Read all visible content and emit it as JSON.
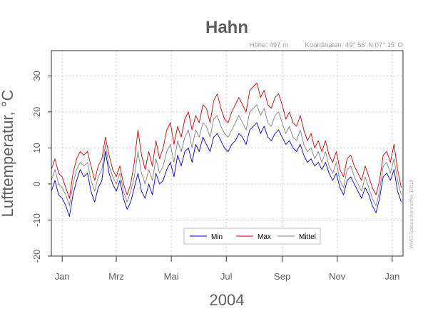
{
  "chart_data": {
    "type": "line",
    "title": "Hahn",
    "subtitle_elevation": "Höhe: 497 m",
    "subtitle_coordinates": "Koordinaten: 49° 56' N  07° 15' O",
    "xlabel": "2004",
    "ylabel": "Lufttemperatur, °C",
    "station_note": "WMO-Stationskennziffer 10616",
    "ylim": [
      -20,
      37
    ],
    "yticks": [
      -20,
      -10,
      0,
      10,
      20,
      30
    ],
    "x_range_days": [
      -12,
      378
    ],
    "months": [
      {
        "label": "Jan",
        "day": 0
      },
      {
        "label": "Mrz",
        "day": 60
      },
      {
        "label": "Mai",
        "day": 121
      },
      {
        "label": "Jul",
        "day": 182
      },
      {
        "label": "Sep",
        "day": 244
      },
      {
        "label": "Nov",
        "day": 305
      },
      {
        "label": "Jan",
        "day": 366
      }
    ],
    "legend_placement": "bottom-center",
    "grid": true,
    "colors": {
      "min": "#0000cc",
      "max": "#cc0000",
      "mean": "#808080"
    },
    "series": [
      {
        "name": "Min",
        "key": "min",
        "color": "#0000cc",
        "points": [
          [
            -12,
            -2
          ],
          [
            -8,
            1
          ],
          [
            -4,
            -3
          ],
          [
            0,
            -4
          ],
          [
            4,
            -6
          ],
          [
            8,
            -9
          ],
          [
            12,
            -3
          ],
          [
            16,
            1
          ],
          [
            20,
            4
          ],
          [
            24,
            2
          ],
          [
            28,
            3
          ],
          [
            32,
            -2
          ],
          [
            36,
            -5
          ],
          [
            40,
            -1
          ],
          [
            44,
            1
          ],
          [
            48,
            9
          ],
          [
            52,
            3
          ],
          [
            56,
            0
          ],
          [
            60,
            -2
          ],
          [
            64,
            1
          ],
          [
            68,
            -4
          ],
          [
            72,
            -7
          ],
          [
            76,
            -5
          ],
          [
            80,
            -1
          ],
          [
            84,
            3
          ],
          [
            88,
            -2
          ],
          [
            92,
            -4
          ],
          [
            96,
            0
          ],
          [
            100,
            -3
          ],
          [
            104,
            3
          ],
          [
            108,
            0
          ],
          [
            112,
            1
          ],
          [
            116,
            4
          ],
          [
            120,
            6
          ],
          [
            124,
            2
          ],
          [
            128,
            8
          ],
          [
            132,
            5
          ],
          [
            136,
            9
          ],
          [
            140,
            10
          ],
          [
            144,
            6
          ],
          [
            148,
            11
          ],
          [
            152,
            9
          ],
          [
            156,
            13
          ],
          [
            160,
            11
          ],
          [
            164,
            9
          ],
          [
            168,
            13
          ],
          [
            172,
            14
          ],
          [
            176,
            12
          ],
          [
            180,
            10
          ],
          [
            184,
            9
          ],
          [
            188,
            11
          ],
          [
            192,
            12
          ],
          [
            196,
            14
          ],
          [
            200,
            13
          ],
          [
            204,
            11
          ],
          [
            208,
            15
          ],
          [
            212,
            16
          ],
          [
            216,
            17
          ],
          [
            220,
            14
          ],
          [
            224,
            16
          ],
          [
            228,
            13
          ],
          [
            232,
            12
          ],
          [
            236,
            14
          ],
          [
            240,
            15
          ],
          [
            244,
            13
          ],
          [
            248,
            11
          ],
          [
            252,
            12
          ],
          [
            256,
            10
          ],
          [
            260,
            9
          ],
          [
            264,
            11
          ],
          [
            268,
            8
          ],
          [
            272,
            6
          ],
          [
            276,
            7
          ],
          [
            280,
            5
          ],
          [
            284,
            6
          ],
          [
            288,
            4
          ],
          [
            292,
            6
          ],
          [
            296,
            3
          ],
          [
            300,
            1
          ],
          [
            304,
            3
          ],
          [
            308,
            -1
          ],
          [
            312,
            -3
          ],
          [
            316,
            1
          ],
          [
            320,
            2
          ],
          [
            324,
            0
          ],
          [
            328,
            -2
          ],
          [
            332,
            -4
          ],
          [
            336,
            -1
          ],
          [
            340,
            -3
          ],
          [
            344,
            -6
          ],
          [
            348,
            -8
          ],
          [
            352,
            -4
          ],
          [
            356,
            2
          ],
          [
            360,
            3
          ],
          [
            364,
            1
          ],
          [
            368,
            4
          ],
          [
            372,
            -2
          ],
          [
            376,
            -5
          ]
        ]
      },
      {
        "name": "Max",
        "key": "max",
        "color": "#cc0000",
        "points": [
          [
            -12,
            4
          ],
          [
            -8,
            7
          ],
          [
            -4,
            3
          ],
          [
            0,
            2
          ],
          [
            4,
            -1
          ],
          [
            8,
            -4
          ],
          [
            12,
            3
          ],
          [
            16,
            7
          ],
          [
            20,
            9
          ],
          [
            24,
            8
          ],
          [
            28,
            9
          ],
          [
            32,
            5
          ],
          [
            36,
            1
          ],
          [
            40,
            5
          ],
          [
            44,
            7
          ],
          [
            48,
            13
          ],
          [
            52,
            8
          ],
          [
            56,
            4
          ],
          [
            60,
            2
          ],
          [
            64,
            5
          ],
          [
            68,
            0
          ],
          [
            72,
            -3
          ],
          [
            76,
            0
          ],
          [
            80,
            6
          ],
          [
            84,
            15
          ],
          [
            88,
            8
          ],
          [
            92,
            4
          ],
          [
            96,
            9
          ],
          [
            100,
            5
          ],
          [
            104,
            12
          ],
          [
            108,
            7
          ],
          [
            112,
            10
          ],
          [
            116,
            15
          ],
          [
            120,
            17
          ],
          [
            124,
            11
          ],
          [
            128,
            16
          ],
          [
            132,
            13
          ],
          [
            136,
            18
          ],
          [
            140,
            20
          ],
          [
            144,
            15
          ],
          [
            148,
            19
          ],
          [
            152,
            17
          ],
          [
            156,
            22
          ],
          [
            160,
            21
          ],
          [
            164,
            17
          ],
          [
            168,
            23
          ],
          [
            172,
            25
          ],
          [
            176,
            21
          ],
          [
            180,
            18
          ],
          [
            184,
            17
          ],
          [
            188,
            20
          ],
          [
            192,
            22
          ],
          [
            196,
            24
          ],
          [
            200,
            22
          ],
          [
            204,
            20
          ],
          [
            208,
            26
          ],
          [
            212,
            27
          ],
          [
            216,
            28
          ],
          [
            220,
            24
          ],
          [
            224,
            26
          ],
          [
            228,
            22
          ],
          [
            232,
            21
          ],
          [
            236,
            24
          ],
          [
            240,
            25
          ],
          [
            244,
            22
          ],
          [
            248,
            18
          ],
          [
            252,
            20
          ],
          [
            256,
            17
          ],
          [
            260,
            16
          ],
          [
            264,
            19
          ],
          [
            268,
            15
          ],
          [
            272,
            12
          ],
          [
            276,
            14
          ],
          [
            280,
            10
          ],
          [
            284,
            12
          ],
          [
            288,
            9
          ],
          [
            292,
            12
          ],
          [
            296,
            8
          ],
          [
            300,
            6
          ],
          [
            304,
            9
          ],
          [
            308,
            4
          ],
          [
            312,
            2
          ],
          [
            316,
            7
          ],
          [
            320,
            8
          ],
          [
            324,
            5
          ],
          [
            328,
            3
          ],
          [
            332,
            1
          ],
          [
            336,
            5
          ],
          [
            340,
            2
          ],
          [
            344,
            -1
          ],
          [
            348,
            -3
          ],
          [
            352,
            1
          ],
          [
            356,
            8
          ],
          [
            360,
            9
          ],
          [
            364,
            6
          ],
          [
            368,
            11
          ],
          [
            372,
            4
          ],
          [
            376,
            -1
          ]
        ]
      },
      {
        "name": "Mittel",
        "key": "mean",
        "color": "#808080",
        "points": [
          [
            -12,
            1
          ],
          [
            -8,
            4
          ],
          [
            -4,
            0
          ],
          [
            0,
            -1
          ],
          [
            4,
            -3
          ],
          [
            8,
            -6
          ],
          [
            12,
            0
          ],
          [
            16,
            4
          ],
          [
            20,
            6
          ],
          [
            24,
            5
          ],
          [
            28,
            6
          ],
          [
            32,
            1
          ],
          [
            36,
            -2
          ],
          [
            40,
            2
          ],
          [
            44,
            4
          ],
          [
            48,
            11
          ],
          [
            52,
            5
          ],
          [
            56,
            2
          ],
          [
            60,
            0
          ],
          [
            64,
            3
          ],
          [
            68,
            -2
          ],
          [
            72,
            -5
          ],
          [
            76,
            -2
          ],
          [
            80,
            2
          ],
          [
            84,
            9
          ],
          [
            88,
            3
          ],
          [
            92,
            0
          ],
          [
            96,
            4
          ],
          [
            100,
            1
          ],
          [
            104,
            7
          ],
          [
            108,
            3
          ],
          [
            112,
            5
          ],
          [
            116,
            9
          ],
          [
            120,
            11
          ],
          [
            124,
            6
          ],
          [
            128,
            12
          ],
          [
            132,
            9
          ],
          [
            136,
            13
          ],
          [
            140,
            15
          ],
          [
            144,
            10
          ],
          [
            148,
            15
          ],
          [
            152,
            13
          ],
          [
            156,
            17
          ],
          [
            160,
            16
          ],
          [
            164,
            13
          ],
          [
            168,
            18
          ],
          [
            172,
            19
          ],
          [
            176,
            16
          ],
          [
            180,
            14
          ],
          [
            184,
            13
          ],
          [
            188,
            15
          ],
          [
            192,
            17
          ],
          [
            196,
            19
          ],
          [
            200,
            17
          ],
          [
            204,
            15
          ],
          [
            208,
            20
          ],
          [
            212,
            21
          ],
          [
            216,
            22
          ],
          [
            220,
            19
          ],
          [
            224,
            21
          ],
          [
            228,
            17
          ],
          [
            232,
            16
          ],
          [
            236,
            19
          ],
          [
            240,
            20
          ],
          [
            244,
            17
          ],
          [
            248,
            14
          ],
          [
            252,
            16
          ],
          [
            256,
            13
          ],
          [
            260,
            12
          ],
          [
            264,
            15
          ],
          [
            268,
            11
          ],
          [
            272,
            9
          ],
          [
            276,
            10
          ],
          [
            280,
            7
          ],
          [
            284,
            9
          ],
          [
            288,
            6
          ],
          [
            292,
            9
          ],
          [
            296,
            5
          ],
          [
            300,
            3
          ],
          [
            304,
            6
          ],
          [
            308,
            1
          ],
          [
            312,
            -1
          ],
          [
            316,
            4
          ],
          [
            320,
            5
          ],
          [
            324,
            2
          ],
          [
            328,
            0
          ],
          [
            332,
            -2
          ],
          [
            336,
            2
          ],
          [
            340,
            -1
          ],
          [
            344,
            -4
          ],
          [
            348,
            -6
          ],
          [
            352,
            -2
          ],
          [
            356,
            5
          ],
          [
            360,
            6
          ],
          [
            364,
            3
          ],
          [
            368,
            7
          ],
          [
            372,
            1
          ],
          [
            376,
            -3
          ]
        ]
      }
    ]
  }
}
